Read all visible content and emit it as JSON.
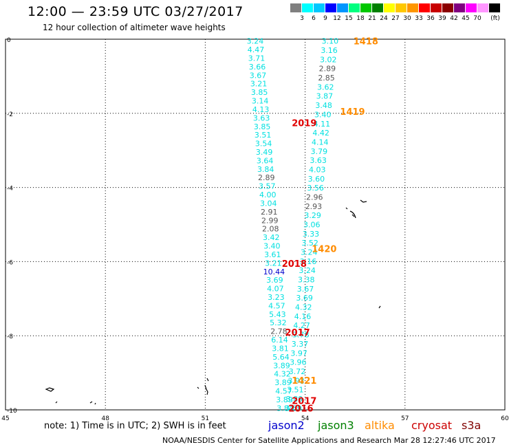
{
  "header": {
    "title": "12:00 — 23:59 UTC 03/27/2017",
    "subtitle": "12 hour collection of altimeter wave heights"
  },
  "legend": {
    "unit": "(ft)",
    "colors": [
      "#808080",
      "#00ffff",
      "#00c8ff",
      "#0000ff",
      "#0096ff",
      "#00ff7f",
      "#00c800",
      "#008000",
      "#ffff00",
      "#ffc800",
      "#ff9600",
      "#ff0000",
      "#c80000",
      "#8b0000",
      "#800080",
      "#ff00ff",
      "#ff96ff",
      "#000000"
    ],
    "labels": [
      "3",
      "6",
      "9",
      "12",
      "15",
      "18",
      "21",
      "24",
      "27",
      "30",
      "33",
      "36",
      "39",
      "42",
      "45",
      "70"
    ]
  },
  "axes": {
    "x_ticks": [
      "45",
      "48",
      "51",
      "54",
      "57",
      "60"
    ],
    "y_ticks": [
      "0",
      "-2",
      "-4",
      "-6",
      "-8",
      "-10"
    ]
  },
  "passes": [
    {
      "label": "1418",
      "color": "#ff8c00",
      "x": 55.45,
      "y": -0.05
    },
    {
      "label": "1419",
      "color": "#ff8c00",
      "x": 55.05,
      "y": -1.95
    },
    {
      "label": "1420",
      "color": "#ff8c00",
      "x": 54.2,
      "y": -5.65
    },
    {
      "label": "1421",
      "color": "#ff8c00",
      "x": 53.6,
      "y": -9.2
    },
    {
      "label": "2019",
      "color": "#e00000",
      "x": 53.6,
      "y": -2.25
    },
    {
      "label": "2018",
      "color": "#e00000",
      "x": 53.3,
      "y": -6.05
    },
    {
      "label": "2017",
      "color": "#e00000",
      "x": 53.4,
      "y": -7.9
    },
    {
      "label": "2017",
      "color": "#e00000",
      "x": 53.6,
      "y": -9.75
    },
    {
      "label": "2016",
      "color": "#e00000",
      "x": 53.5,
      "y": -9.95
    }
  ],
  "track_a": {
    "color": "#00e0e0",
    "x_start": 52.5,
    "y_start": -0.05,
    "x_end": 53.4,
    "y_end": -9.95,
    "values": [
      "3.24",
      "4.47",
      "3.71",
      "3.66",
      "3.67",
      "3.21",
      "3.85",
      "3.14",
      "4.13",
      "3.63",
      "3.85",
      "3.51",
      "3.54",
      "3.49",
      "3.64",
      "3.84",
      "2.89",
      "3.57",
      "4.00",
      "3.04",
      "2.91",
      "2.99",
      "2.08",
      "3.42",
      "3.40",
      "3.61",
      "3.21",
      "10.44",
      "3.69",
      "4.07",
      "3.23",
      "4.57",
      "5.43",
      "5.32",
      "2.78",
      "6.14",
      "3.81",
      "5.64",
      "3.89",
      "4.32",
      "3.89",
      "4.57",
      "3.89",
      "3.84"
    ],
    "value_colors": {
      "2.89": "#555555",
      "2.91": "#555555",
      "2.99": "#555555",
      "2.08": "#555555",
      "2.78": "#555555",
      "10.44": "#0000cc"
    }
  },
  "track_b": {
    "color": "#00e0e0",
    "x_start": 54.75,
    "y_start": -0.05,
    "x_end": 53.65,
    "y_end": -9.95,
    "values": [
      "3.10",
      "3.16",
      "3.02",
      "2.89",
      "2.85",
      "3.62",
      "3.87",
      "3.48",
      "3.40",
      "4.11",
      "4.42",
      "4.14",
      "3.79",
      "3.63",
      "4.03",
      "3.60",
      "3.56",
      "2.96",
      "2.93",
      "3.29",
      "3.06",
      "3.33",
      "3.52",
      "3.24",
      "3.16",
      "3.24",
      "3.38",
      "3.67",
      "3.69",
      "4.32",
      "4.16",
      "4.27",
      "3.78",
      "3.37",
      "3.97",
      "3.96",
      "3.72",
      "3.92",
      "3.51",
      "3.89",
      "3.69"
    ],
    "value_colors": {
      "2.89": "#555555",
      "2.85": "#555555",
      "2.96": "#555555",
      "2.93": "#555555"
    }
  },
  "footer": {
    "note": "note:  1) Time is in UTC;  2) SWH is in feet",
    "missions": [
      {
        "name": "jason2",
        "color": "#0000cc"
      },
      {
        "name": "jason3",
        "color": "#008000"
      },
      {
        "name": "altika",
        "color": "#ff8c00"
      },
      {
        "name": "cryosat",
        "color": "#cc0000"
      },
      {
        "name": "s3a",
        "color": "#800000"
      }
    ],
    "credit": "NOAA/NESDIS Center for Satellite Applications and Research    Mar 28 12:27:46 UTC 2017"
  }
}
